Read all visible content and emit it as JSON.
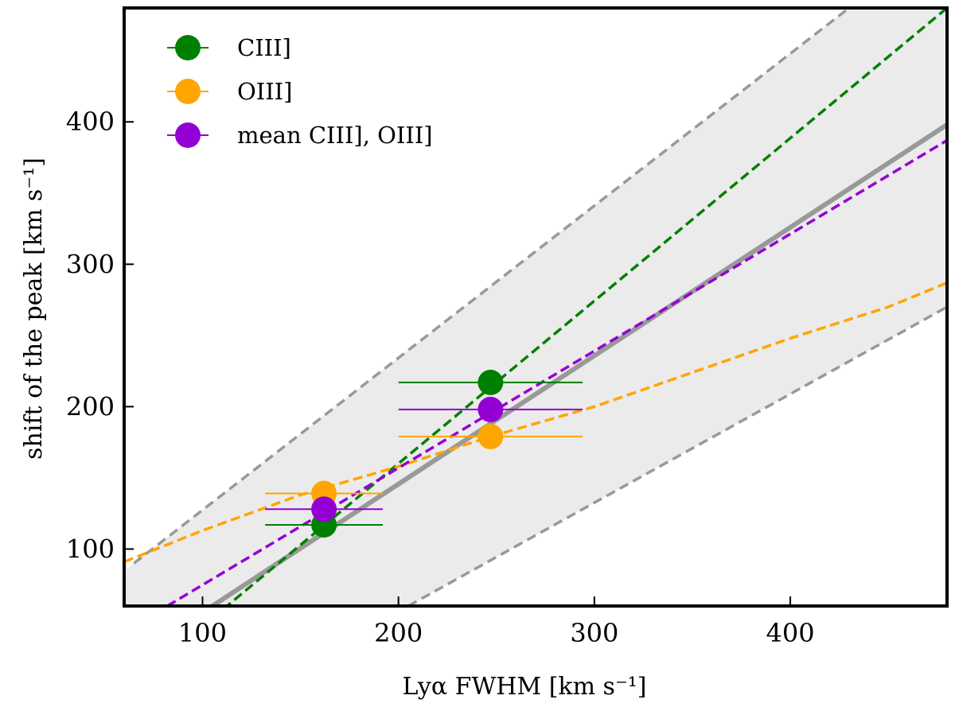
{
  "chart_data": {
    "type": "scatter",
    "title": "",
    "xlabel": "Lyα FWHM [km s⁻¹]",
    "ylabel": "shift of the peak [km s⁻¹]",
    "xlim": [
      60,
      480
    ],
    "ylim": [
      60,
      480
    ],
    "xticks": [
      100,
      200,
      300,
      400
    ],
    "yticks": [
      100,
      200,
      300,
      400
    ],
    "xtick_labels": [
      "100",
      "200",
      "300",
      "400"
    ],
    "ytick_labels": [
      "100",
      "200",
      "300",
      "400"
    ],
    "grid": false,
    "legend_position": "top-left",
    "series": [
      {
        "name": "CIII]",
        "color": "#008000",
        "points": [
          {
            "x": 162,
            "y": 117,
            "xerr": 30
          },
          {
            "x": 247,
            "y": 217,
            "xerr": 47
          }
        ],
        "fit_line": [
          [
            60,
            0
          ],
          [
            480,
            480
          ]
        ]
      },
      {
        "name": "OIII]",
        "color": "#FFA500",
        "points": [
          {
            "x": 162,
            "y": 139,
            "xerr": 30
          },
          {
            "x": 247,
            "y": 179,
            "xerr": 47
          }
        ],
        "fit_curve": [
          [
            60,
            91
          ],
          [
            100,
            113
          ],
          [
            150,
            138
          ],
          [
            200,
            158
          ],
          [
            247,
            179
          ],
          [
            300,
            200
          ],
          [
            350,
            224
          ],
          [
            400,
            248
          ],
          [
            450,
            270
          ],
          [
            480,
            287
          ]
        ]
      },
      {
        "name": "mean CIII], OIII]",
        "color": "#9400D3",
        "points": [
          {
            "x": 162,
            "y": 128,
            "xerr": 30
          },
          {
            "x": 247,
            "y": 198,
            "xerr": 47
          }
        ],
        "fit_line": [
          [
            82,
            60
          ],
          [
            480,
            387
          ]
        ]
      }
    ],
    "relation": {
      "color": "#999999",
      "line": [
        [
          105,
          60
        ],
        [
          480,
          398
        ]
      ],
      "band_upper": [
        [
          65,
          90
        ],
        [
          430,
          480
        ]
      ],
      "band_lower": [
        [
          205,
          60
        ],
        [
          480,
          270
        ]
      ]
    }
  },
  "colors": {
    "band_fill": "#ebebeb",
    "frame": "#000000"
  }
}
